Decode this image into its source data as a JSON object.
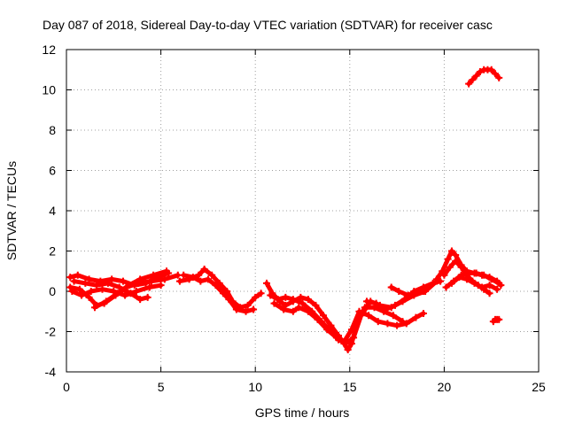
{
  "chart_data": {
    "type": "scatter",
    "title": "Day 087 of 2018, Sidereal Day-to-day VTEC variation (SDTVAR) for receiver casc",
    "xlabel": "GPS time / hours",
    "ylabel": "SDTVAR / TECUs",
    "xlim": [
      0,
      25
    ],
    "ylim": [
      -4,
      12
    ],
    "xticks": [
      0,
      5,
      10,
      15,
      20,
      25
    ],
    "yticks": [
      -4,
      -2,
      0,
      2,
      4,
      6,
      8,
      10,
      12
    ],
    "grid": true,
    "legend": "none",
    "marker_color": "#ff0000",
    "series": [
      {
        "name": "track-a",
        "points": [
          [
            0.2,
            0.7
          ],
          [
            0.6,
            0.8
          ],
          [
            1.2,
            0.6
          ],
          [
            1.8,
            0.5
          ],
          [
            2.4,
            0.6
          ],
          [
            3.0,
            0.5
          ],
          [
            3.6,
            0.3
          ],
          [
            4.2,
            0.4
          ],
          [
            4.8,
            0.7
          ],
          [
            5.4,
            0.9
          ]
        ]
      },
      {
        "name": "track-b",
        "points": [
          [
            0.2,
            0.2
          ],
          [
            0.7,
            0.1
          ],
          [
            1.2,
            -0.3
          ],
          [
            1.6,
            -0.7
          ],
          [
            2.0,
            -0.6
          ],
          [
            2.6,
            -0.2
          ],
          [
            3.2,
            0.2
          ],
          [
            3.8,
            0.4
          ],
          [
            4.5,
            0.5
          ],
          [
            5.2,
            0.6
          ],
          [
            5.9,
            0.8
          ]
        ]
      },
      {
        "name": "track-c",
        "points": [
          [
            0.4,
            0.5
          ],
          [
            1.0,
            0.4
          ],
          [
            1.6,
            0.3
          ],
          [
            2.2,
            0.4
          ],
          [
            2.8,
            0.2
          ],
          [
            3.4,
            -0.1
          ],
          [
            3.9,
            -0.4
          ],
          [
            4.3,
            -0.3
          ]
        ]
      },
      {
        "name": "track-d",
        "points": [
          [
            0.3,
            0.0
          ],
          [
            0.8,
            -0.2
          ],
          [
            1.3,
            0.0
          ],
          [
            1.9,
            0.1
          ],
          [
            2.5,
            0.0
          ],
          [
            3.1,
            -0.2
          ],
          [
            3.7,
            0.0
          ],
          [
            4.4,
            0.2
          ],
          [
            5.0,
            0.3
          ]
        ]
      },
      {
        "name": "track-e",
        "points": [
          [
            1.5,
            -0.8
          ],
          [
            2.1,
            -0.5
          ],
          [
            2.7,
            -0.1
          ],
          [
            3.3,
            0.3
          ],
          [
            3.9,
            0.6
          ],
          [
            4.6,
            0.8
          ],
          [
            5.3,
            1.0
          ]
        ]
      },
      {
        "name": "track-f",
        "points": [
          [
            6.0,
            0.5
          ],
          [
            6.5,
            0.6
          ],
          [
            7.0,
            0.8
          ],
          [
            7.3,
            1.1
          ],
          [
            7.7,
            0.8
          ],
          [
            8.1,
            0.4
          ],
          [
            8.5,
            0.0
          ],
          [
            8.8,
            -0.5
          ],
          [
            9.2,
            -0.8
          ],
          [
            9.6,
            -0.7
          ],
          [
            10.0,
            -0.3
          ],
          [
            10.3,
            -0.1
          ]
        ]
      },
      {
        "name": "track-g",
        "points": [
          [
            6.2,
            0.8
          ],
          [
            6.7,
            0.7
          ],
          [
            7.1,
            0.5
          ],
          [
            7.5,
            0.6
          ],
          [
            7.9,
            0.3
          ],
          [
            8.3,
            -0.1
          ],
          [
            8.6,
            -0.4
          ],
          [
            9.0,
            -0.9
          ],
          [
            9.5,
            -1.0
          ],
          [
            9.9,
            -0.9
          ]
        ]
      },
      {
        "name": "track-h",
        "points": [
          [
            10.6,
            0.4
          ],
          [
            10.9,
            -0.1
          ],
          [
            11.3,
            -0.5
          ],
          [
            11.6,
            -0.7
          ],
          [
            12.0,
            -0.5
          ],
          [
            12.4,
            -0.3
          ],
          [
            12.8,
            -0.4
          ],
          [
            13.2,
            -0.7
          ],
          [
            13.6,
            -1.2
          ],
          [
            14.0,
            -1.7
          ],
          [
            14.4,
            -2.2
          ],
          [
            14.7,
            -2.6
          ],
          [
            14.9,
            -2.9
          ],
          [
            15.1,
            -2.6
          ],
          [
            15.4,
            -1.5
          ],
          [
            15.8,
            -0.8
          ],
          [
            16.3,
            -0.8
          ],
          [
            16.8,
            -1.0
          ],
          [
            17.3,
            -1.2
          ],
          [
            17.8,
            -1.5
          ]
        ]
      },
      {
        "name": "track-i",
        "points": [
          [
            10.8,
            -0.2
          ],
          [
            11.2,
            -0.4
          ],
          [
            11.6,
            -0.3
          ],
          [
            12.0,
            -0.4
          ],
          [
            12.5,
            -0.6
          ],
          [
            13.0,
            -1.0
          ],
          [
            13.5,
            -1.5
          ],
          [
            14.0,
            -2.0
          ],
          [
            14.4,
            -2.4
          ],
          [
            14.8,
            -2.6
          ],
          [
            15.2,
            -2.3
          ],
          [
            15.6,
            -1.2
          ],
          [
            16.1,
            -0.5
          ],
          [
            16.6,
            -0.7
          ],
          [
            17.2,
            -0.8
          ],
          [
            17.8,
            -0.5
          ],
          [
            18.4,
            -0.2
          ],
          [
            19.0,
            0.0
          ],
          [
            19.6,
            0.5
          ]
        ]
      },
      {
        "name": "track-j",
        "points": [
          [
            11.0,
            -0.6
          ],
          [
            11.5,
            -0.9
          ],
          [
            12.0,
            -1.0
          ],
          [
            12.3,
            -0.8
          ],
          [
            12.8,
            -1.0
          ],
          [
            13.3,
            -1.4
          ],
          [
            13.8,
            -1.9
          ],
          [
            14.3,
            -2.3
          ],
          [
            14.7,
            -2.5
          ],
          [
            15.1,
            -1.9
          ],
          [
            15.5,
            -1.0
          ],
          [
            16.0,
            -1.2
          ],
          [
            16.5,
            -1.5
          ],
          [
            17.0,
            -1.6
          ],
          [
            17.5,
            -1.7
          ],
          [
            18.0,
            -1.6
          ],
          [
            18.5,
            -1.3
          ],
          [
            18.9,
            -1.1
          ]
        ]
      },
      {
        "name": "track-k",
        "points": [
          [
            15.9,
            -0.5
          ],
          [
            16.4,
            -0.6
          ],
          [
            16.9,
            -0.9
          ],
          [
            17.4,
            -0.7
          ],
          [
            17.9,
            -0.4
          ],
          [
            18.4,
            0.0
          ],
          [
            18.9,
            0.2
          ],
          [
            19.4,
            0.4
          ],
          [
            19.8,
            0.5
          ]
        ]
      },
      {
        "name": "track-l",
        "points": [
          [
            17.2,
            0.2
          ],
          [
            17.6,
            0.0
          ],
          [
            18.1,
            -0.2
          ],
          [
            18.5,
            -0.1
          ],
          [
            18.9,
            0.0
          ]
        ]
      },
      {
        "name": "track-m",
        "points": [
          [
            19.6,
            0.6
          ],
          [
            19.9,
            1.0
          ],
          [
            20.2,
            1.6
          ],
          [
            20.4,
            2.0
          ],
          [
            20.6,
            1.8
          ],
          [
            20.9,
            1.3
          ],
          [
            21.2,
            1.0
          ],
          [
            21.6,
            0.9
          ],
          [
            22.0,
            0.8
          ],
          [
            22.4,
            0.7
          ],
          [
            22.8,
            0.5
          ],
          [
            23.0,
            0.3
          ]
        ]
      },
      {
        "name": "track-n",
        "points": [
          [
            20.0,
            0.8
          ],
          [
            20.3,
            1.2
          ],
          [
            20.6,
            1.5
          ],
          [
            20.9,
            1.2
          ],
          [
            21.2,
            0.8
          ],
          [
            21.5,
            0.5
          ],
          [
            21.8,
            0.3
          ],
          [
            22.1,
            0.1
          ],
          [
            22.4,
            -0.1
          ]
        ]
      },
      {
        "name": "track-o",
        "points": [
          [
            20.1,
            0.2
          ],
          [
            20.5,
            0.5
          ],
          [
            20.9,
            0.8
          ],
          [
            21.3,
            0.9
          ],
          [
            21.7,
            0.9
          ],
          [
            22.1,
            0.8
          ],
          [
            22.5,
            0.6
          ],
          [
            22.9,
            0.4
          ]
        ]
      },
      {
        "name": "track-p",
        "points": [
          [
            20.4,
            0.4
          ],
          [
            20.8,
            0.7
          ],
          [
            21.2,
            0.6
          ],
          [
            21.6,
            0.4
          ],
          [
            22.0,
            0.2
          ],
          [
            22.4,
            0.3
          ],
          [
            22.8,
            0.1
          ]
        ]
      },
      {
        "name": "track-q",
        "points": [
          [
            22.6,
            -1.5
          ],
          [
            22.7,
            -1.4
          ],
          [
            22.8,
            -1.4
          ],
          [
            22.9,
            -1.4
          ]
        ]
      },
      {
        "name": "track-r",
        "points": [
          [
            21.3,
            10.3
          ],
          [
            21.5,
            10.5
          ],
          [
            21.7,
            10.7
          ],
          [
            21.9,
            10.9
          ],
          [
            22.1,
            11.0
          ],
          [
            22.3,
            11.0
          ],
          [
            22.5,
            11.0
          ],
          [
            22.7,
            10.8
          ],
          [
            22.9,
            10.6
          ]
        ]
      }
    ]
  }
}
